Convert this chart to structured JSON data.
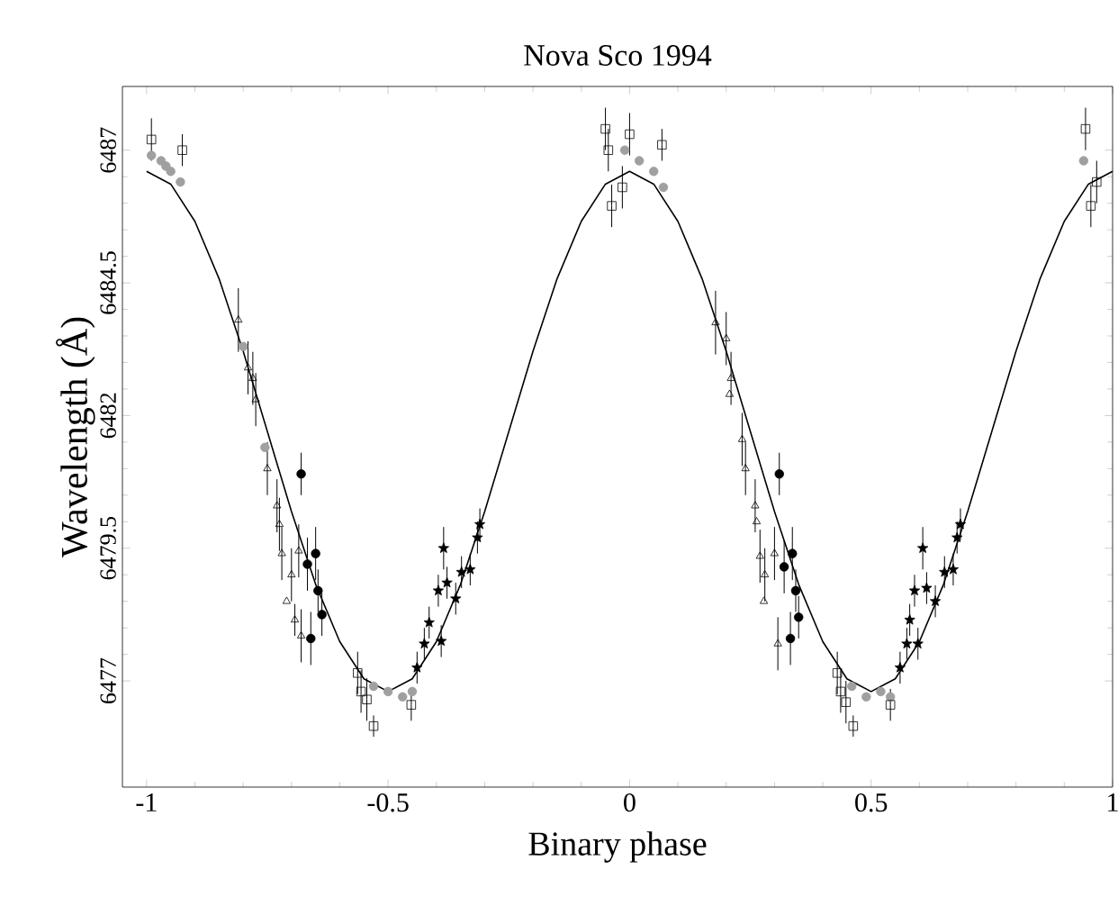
{
  "chart_data": {
    "type": "scatter",
    "title": "Nova Sco 1994",
    "xlabel": "Binary phase",
    "ylabel": "Wavelength (Å)",
    "xlim": [
      -1.05,
      1.0
    ],
    "ylim": [
      6475,
      6488.2
    ],
    "xticks": [
      -1,
      -0.5,
      0,
      0.5,
      1
    ],
    "yticks": [
      6477,
      6479.5,
      6482,
      6484.5,
      6487
    ],
    "series": [
      {
        "type": "line",
        "color": "#000000",
        "marker": "none",
        "line_style": "solid",
        "x": [
          -1,
          -0.95,
          -0.9,
          -0.85,
          -0.8,
          -0.75,
          -0.7,
          -0.65,
          -0.6,
          -0.55,
          -0.5,
          -0.45,
          -0.4,
          -0.35,
          -0.3,
          -0.25,
          -0.2,
          -0.15,
          -0.1,
          -0.05,
          0,
          0.05,
          0.1,
          0.15,
          0.2,
          0.25,
          0.3,
          0.35,
          0.4,
          0.45,
          0.5,
          0.55,
          0.6,
          0.65,
          0.7,
          0.75,
          0.8,
          0.85,
          0.9,
          0.95,
          1
        ],
        "values": [
          6486.6,
          6486.36,
          6485.66,
          6484.58,
          6483.21,
          6481.7,
          6480.19,
          6478.82,
          6477.74,
          6477.04,
          6476.8,
          6477.04,
          6477.74,
          6478.82,
          6480.19,
          6481.7,
          6483.21,
          6484.58,
          6485.66,
          6486.36,
          6486.6,
          6486.36,
          6485.66,
          6484.58,
          6483.21,
          6481.7,
          6480.19,
          6478.82,
          6477.74,
          6477.04,
          6476.8,
          6477.04,
          6477.74,
          6478.82,
          6480.19,
          6481.7,
          6483.21,
          6484.58,
          6485.66,
          6486.36,
          6486.6
        ]
      },
      {
        "type": "scatter",
        "color": "#a0a0a0",
        "marker": "circle",
        "x": [
          -0.99,
          -0.97,
          -0.95,
          -0.93,
          -0.96,
          -0.8,
          -0.755,
          -0.53,
          -0.5,
          -0.47,
          -0.45,
          -0.01,
          0.02,
          0.05,
          0.07,
          0.46,
          0.49,
          0.52,
          0.54,
          0.94
        ],
        "values": [
          6486.9,
          6486.8,
          6486.6,
          6486.4,
          6486.7,
          6483.3,
          6481.4,
          6476.9,
          6476.8,
          6476.7,
          6476.8,
          6487.0,
          6486.8,
          6486.6,
          6486.3,
          6476.9,
          6476.7,
          6476.8,
          6476.7,
          6486.8
        ]
      },
      {
        "type": "scatter",
        "color": "#000000",
        "marker": "triangle",
        "x": [
          -0.81,
          -0.79,
          -0.78,
          -0.774,
          -0.75,
          -0.73,
          -0.725,
          -0.72,
          -0.7,
          -0.71,
          -0.693,
          -0.68,
          -0.685,
          0.178,
          0.2,
          0.21,
          0.207,
          0.233,
          0.24,
          0.26,
          0.263,
          0.27,
          0.28,
          0.278,
          0.3,
          0.307
        ],
        "values": [
          6483.8,
          6482.9,
          6482.7,
          6482.3,
          6481.0,
          6480.3,
          6479.95,
          6479.4,
          6479.0,
          6478.5,
          6478.15,
          6477.85,
          6479.45,
          6483.75,
          6483.45,
          6482.7,
          6482.4,
          6481.55,
          6481.0,
          6480.3,
          6480.0,
          6479.35,
          6479.0,
          6478.5,
          6479.4,
          6477.7
        ],
        "errors": [
          0.6,
          0.5,
          0.5,
          0.5,
          0.5,
          0.5,
          0.5,
          0.5,
          0.5,
          null,
          0.3,
          0.5,
          0.5,
          0.6,
          0.5,
          0.5,
          null,
          0.5,
          0.5,
          0.5,
          null,
          0.5,
          0.5,
          null,
          0.5,
          0.5
        ]
      },
      {
        "type": "scatter",
        "color": "#000000",
        "marker": "circle",
        "x": [
          -0.68,
          -0.667,
          -0.65,
          -0.645,
          -0.637,
          -0.66,
          0.31,
          0.32,
          0.337,
          0.344,
          0.35,
          0.333
        ],
        "values": [
          6480.9,
          6479.2,
          6479.4,
          6478.7,
          6478.25,
          6477.8,
          6480.9,
          6479.15,
          6479.4,
          6478.7,
          6478.2,
          6477.8
        ],
        "errors": [
          0.4,
          0.5,
          0.5,
          0.4,
          0.4,
          0.5,
          0.4,
          0.5,
          0.5,
          0.4,
          0.4,
          0.5
        ]
      },
      {
        "type": "scatter",
        "color": "#000000",
        "marker": "star",
        "x": [
          -0.44,
          -0.425,
          -0.415,
          -0.396,
          -0.39,
          -0.385,
          -0.378,
          -0.36,
          -0.348,
          -0.33,
          -0.315,
          -0.31,
          0.56,
          0.574,
          0.58,
          0.59,
          0.597,
          0.607,
          0.615,
          0.633,
          0.652,
          0.67,
          0.678,
          0.685
        ],
        "values": [
          6477.25,
          6477.7,
          6478.1,
          6478.7,
          6477.75,
          6479.5,
          6478.85,
          6478.55,
          6479.05,
          6479.1,
          6479.7,
          6479.95,
          6477.25,
          6477.7,
          6478.15,
          6478.7,
          6477.7,
          6479.5,
          6478.75,
          6478.5,
          6479.05,
          6479.1,
          6479.7,
          6479.95
        ],
        "errors": [
          0.3,
          0.3,
          0.3,
          0.3,
          0.3,
          0.4,
          0.3,
          0.3,
          0.3,
          0.3,
          0.3,
          0.3,
          0.3,
          0.3,
          0.3,
          0.3,
          0.3,
          0.4,
          0.3,
          0.3,
          0.3,
          0.3,
          0.3,
          0.3
        ]
      },
      {
        "type": "scatter",
        "color": "#000000",
        "marker": "square",
        "x": [
          -0.563,
          -0.556,
          -0.544,
          -0.53,
          -0.452,
          0.43,
          0.437,
          0.448,
          0.463,
          0.54,
          -0.99,
          -0.926,
          -0.05,
          -0.044,
          0.0,
          0.067,
          -0.015,
          0.944,
          0.967,
          -0.037,
          0.955
        ],
        "values": [
          6477.15,
          6476.8,
          6476.65,
          6476.15,
          6476.55,
          6477.15,
          6476.8,
          6476.6,
          6476.15,
          6476.55,
          6487.2,
          6487.0,
          6487.4,
          6487.0,
          6487.3,
          6487.1,
          6486.3,
          6487.4,
          6486.4,
          6485.95,
          6485.95
        ],
        "errors": [
          0.4,
          0.4,
          0.4,
          0.2,
          0.3,
          0.4,
          0.4,
          0.4,
          0.2,
          0.3,
          0.4,
          0.3,
          0.4,
          0.4,
          0.4,
          0.3,
          0.4,
          0.4,
          0.4,
          0.4,
          0.4
        ]
      }
    ]
  }
}
